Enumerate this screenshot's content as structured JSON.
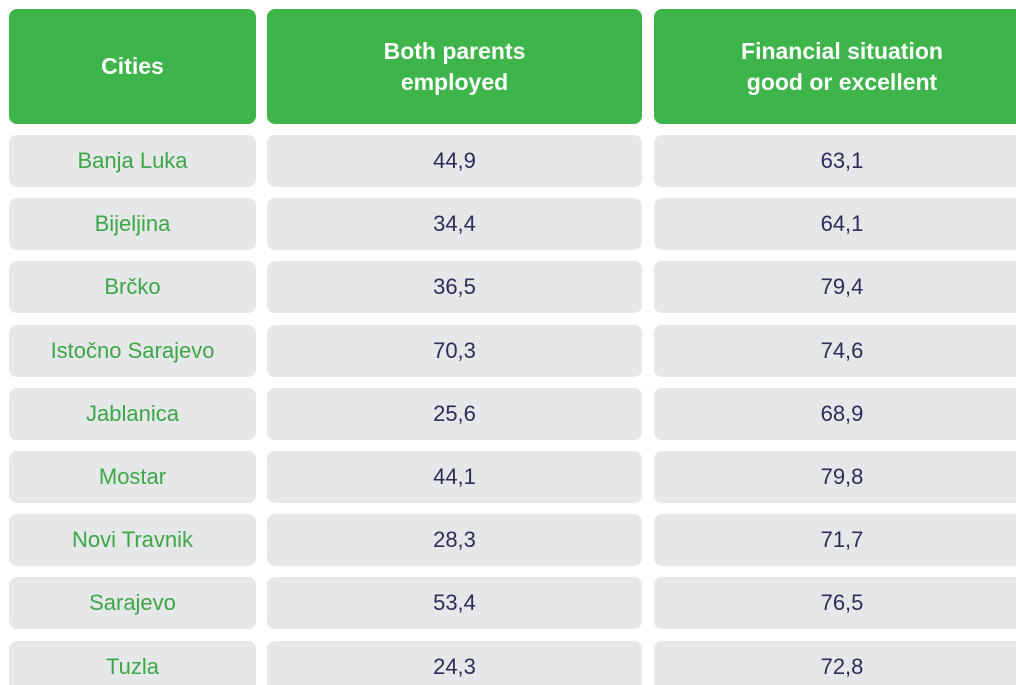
{
  "table": {
    "header": [
      "Cities",
      "Both parents employed",
      "Financial situation good or excellent"
    ],
    "rows": [
      [
        "Banja Luka",
        "44,9",
        "63,1"
      ],
      [
        "Bijeljina",
        "34,4",
        "64,1"
      ],
      [
        "Brčko",
        "36,5",
        "79,4"
      ],
      [
        "Istočno Sarajevo",
        "70,3",
        "74,6"
      ],
      [
        "Jablanica",
        "25,6",
        "68,9"
      ],
      [
        "Mostar",
        "44,1",
        "79,8"
      ],
      [
        "Novi Travnik",
        "28,3",
        "71,7"
      ],
      [
        "Sarajevo",
        "53,4",
        "76,5"
      ],
      [
        "Tuzla",
        "24,3",
        "72,8"
      ]
    ]
  }
}
